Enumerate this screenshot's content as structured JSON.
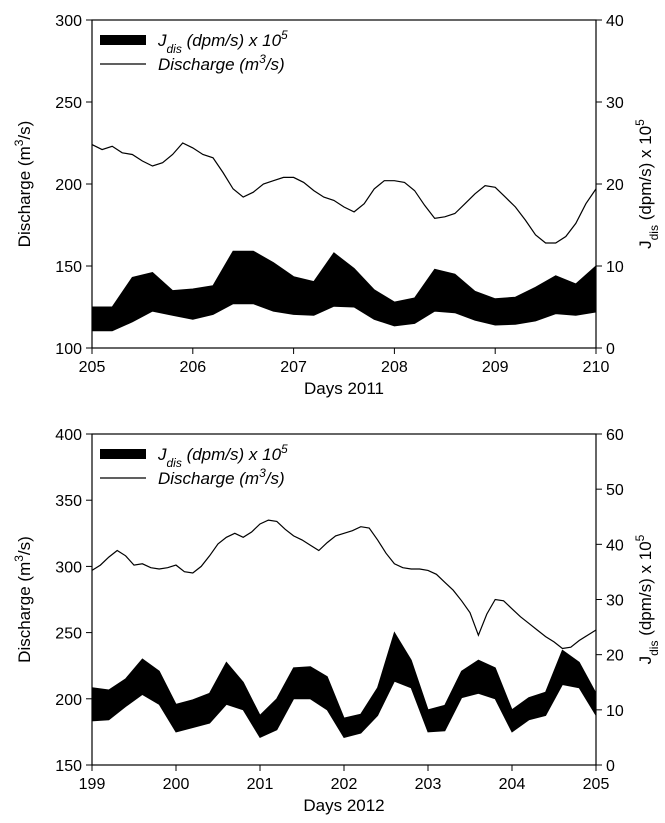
{
  "chart_data": [
    {
      "type": "area",
      "xlabel": "Days 2011",
      "ylabel": "Discharge (m³/s)",
      "y2label": "J_dis (dpm/s) x 10^5",
      "xlim": [
        205,
        210
      ],
      "ylim": [
        100,
        300
      ],
      "y2lim": [
        0,
        40
      ],
      "xticks": [
        "205",
        "206",
        "207",
        "208",
        "209",
        "210"
      ],
      "yticks": [
        "100",
        "150",
        "200",
        "250",
        "300"
      ],
      "y2ticks": [
        "0",
        "10",
        "20",
        "30",
        "40"
      ],
      "legend_position": "top-left",
      "series": [
        {
          "name": "J_dis (dpm/s) x 10^5",
          "axis": "right",
          "kind": "band",
          "color": "#000000",
          "x": [
            205.0,
            205.2,
            205.4,
            205.6,
            205.8,
            206.0,
            206.2,
            206.4,
            206.6,
            206.8,
            207.0,
            207.2,
            207.4,
            207.6,
            207.8,
            208.0,
            208.2,
            208.4,
            208.6,
            208.8,
            209.0,
            209.2,
            209.4,
            209.6,
            209.8,
            210.0
          ],
          "lower": [
            2.1,
            2.1,
            3.2,
            4.5,
            4.0,
            3.5,
            4.1,
            5.4,
            5.4,
            4.5,
            4.1,
            4.0,
            5.1,
            5.0,
            3.5,
            2.7,
            3.0,
            4.5,
            4.3,
            3.4,
            2.8,
            2.9,
            3.3,
            4.2,
            4.0,
            4.4
          ],
          "upper": [
            5.0,
            5.0,
            8.6,
            9.2,
            7.0,
            7.2,
            7.6,
            11.8,
            11.8,
            10.4,
            8.7,
            8.1,
            11.6,
            9.7,
            7.1,
            5.6,
            6.1,
            9.6,
            9.0,
            6.9,
            6.0,
            6.2,
            7.4,
            8.8,
            7.8,
            10.0
          ]
        },
        {
          "name": "Discharge (m³/s)",
          "axis": "left",
          "kind": "line",
          "color": "#000000",
          "x": [
            205.0,
            205.1,
            205.2,
            205.3,
            205.4,
            205.5,
            205.6,
            205.7,
            205.8,
            205.9,
            206.0,
            206.1,
            206.2,
            206.3,
            206.4,
            206.5,
            206.6,
            206.7,
            206.8,
            206.9,
            207.0,
            207.1,
            207.2,
            207.3,
            207.4,
            207.5,
            207.6,
            207.7,
            207.8,
            207.9,
            208.0,
            208.1,
            208.2,
            208.3,
            208.4,
            208.5,
            208.6,
            208.7,
            208.8,
            208.9,
            209.0,
            209.1,
            209.2,
            209.3,
            209.4,
            209.5,
            209.6,
            209.7,
            209.8,
            209.9,
            210.0
          ],
          "y": [
            224,
            221,
            223,
            219,
            218,
            214,
            211,
            213,
            218,
            225,
            222,
            218,
            216,
            207,
            197,
            192,
            195,
            200,
            202,
            204,
            204,
            201,
            196,
            192,
            190,
            186,
            183,
            188,
            197,
            202,
            202,
            201,
            196,
            187,
            179,
            180,
            182,
            188,
            194,
            199,
            198,
            192,
            186,
            178,
            169,
            164,
            164,
            168,
            176,
            188,
            197
          ]
        }
      ]
    },
    {
      "type": "area",
      "xlabel": "Days 2012",
      "ylabel": "Discharge (m³/s)",
      "y2label": "J_dis (dpm/s) x 10^5",
      "xlim": [
        199,
        205
      ],
      "ylim": [
        150,
        400
      ],
      "y2lim": [
        0,
        60
      ],
      "xticks": [
        "199",
        "200",
        "201",
        "202",
        "203",
        "204",
        "205"
      ],
      "yticks": [
        "150",
        "200",
        "250",
        "300",
        "350",
        "400"
      ],
      "y2ticks": [
        "0",
        "10",
        "20",
        "30",
        "40",
        "50",
        "60"
      ],
      "legend_position": "top-left",
      "series": [
        {
          "name": "J_dis (dpm/s) x 10^5",
          "axis": "right",
          "kind": "band",
          "color": "#000000",
          "x": [
            199.0,
            199.2,
            199.4,
            199.6,
            199.8,
            200.0,
            200.2,
            200.4,
            200.6,
            200.8,
            201.0,
            201.2,
            201.4,
            201.6,
            201.8,
            202.0,
            202.2,
            202.4,
            202.6,
            202.8,
            203.0,
            203.2,
            203.4,
            203.6,
            203.8,
            204.0,
            204.2,
            204.4,
            204.6,
            204.8,
            205.0
          ],
          "lower": [
            8.0,
            8.2,
            10.6,
            12.8,
            11.0,
            6.0,
            6.8,
            7.6,
            11.0,
            10.0,
            5.0,
            6.4,
            12.0,
            12.0,
            10.0,
            5.0,
            5.8,
            9.0,
            15.2,
            14.0,
            6.0,
            6.2,
            12.2,
            13.0,
            12.0,
            6.0,
            8.2,
            9.0,
            14.6,
            14.0,
            9.0
          ],
          "upper": [
            14.0,
            13.6,
            15.6,
            19.2,
            17.0,
            11.0,
            11.8,
            13.0,
            18.6,
            15.0,
            9.0,
            12.0,
            17.6,
            17.8,
            16.0,
            8.5,
            9.2,
            14.0,
            24.0,
            19.0,
            10.0,
            10.8,
            17.0,
            19.0,
            17.6,
            10.0,
            12.2,
            13.2,
            20.8,
            18.6,
            13.0
          ]
        },
        {
          "name": "Discharge (m³/s)",
          "axis": "left",
          "kind": "line",
          "color": "#000000",
          "x": [
            199.0,
            199.1,
            199.2,
            199.3,
            199.4,
            199.5,
            199.6,
            199.7,
            199.8,
            199.9,
            200.0,
            200.1,
            200.2,
            200.3,
            200.4,
            200.5,
            200.6,
            200.7,
            200.8,
            200.9,
            201.0,
            201.1,
            201.2,
            201.3,
            201.4,
            201.5,
            201.6,
            201.7,
            201.8,
            201.9,
            202.0,
            202.1,
            202.2,
            202.3,
            202.4,
            202.5,
            202.6,
            202.7,
            202.8,
            202.9,
            203.0,
            203.1,
            203.2,
            203.3,
            203.4,
            203.5,
            203.6,
            203.7,
            203.8,
            203.9,
            204.0,
            204.1,
            204.2,
            204.3,
            204.4,
            204.5,
            204.6,
            204.7,
            204.8,
            204.9,
            205.0
          ],
          "y": [
            297,
            301,
            307,
            312,
            308,
            301,
            302,
            299,
            298,
            299,
            301,
            296,
            295,
            300,
            308,
            317,
            322,
            325,
            322,
            326,
            332,
            335,
            334,
            328,
            323,
            320,
            316,
            312,
            318,
            323,
            325,
            327,
            330,
            329,
            320,
            310,
            302,
            299,
            298,
            298,
            297,
            294,
            288,
            282,
            274,
            265,
            248,
            264,
            275,
            274,
            268,
            262,
            257,
            252,
            247,
            243,
            238,
            239,
            244,
            248,
            252
          ]
        }
      ]
    }
  ]
}
